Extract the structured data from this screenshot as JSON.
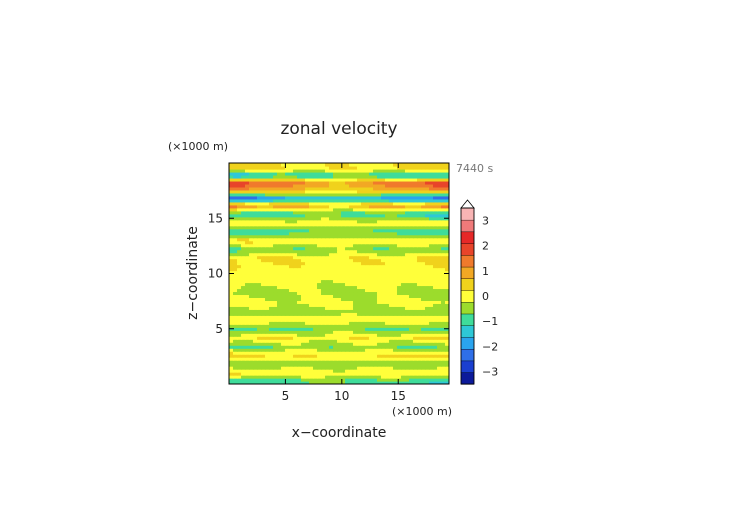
{
  "chart_data": {
    "type": "heatmap",
    "title": "zonal velocity",
    "time_label": "7440 s",
    "xlabel": "x−coordinate",
    "ylabel": "z−coordinate",
    "x_unit_label": "(×1000 m)",
    "y_unit_label": "(×1000 m)",
    "xlim": [
      0,
      19.5
    ],
    "ylim": [
      0,
      20
    ],
    "x_ticks": [
      5,
      10,
      15
    ],
    "y_ticks": [
      5,
      10,
      15
    ],
    "x_tick_labels": [
      "5",
      "10",
      "15"
    ],
    "y_tick_labels": [
      "5",
      "10",
      "15"
    ],
    "colorbar": {
      "min": -3.5,
      "max": 3.5,
      "step": 0.5,
      "extend_max": true,
      "tick_values": [
        -3,
        -2,
        -1,
        0,
        1,
        2,
        3
      ],
      "tick_labels": [
        "−3",
        "−2",
        "−1",
        "0",
        "1",
        "2",
        "3"
      ],
      "colors": [
        "#0c1a9a",
        "#1a3fd0",
        "#2f6fe8",
        "#2aa4ee",
        "#2ec8d6",
        "#3fdc9a",
        "#9cdc2c",
        "#ffff3a",
        "#f0d21c",
        "#f2a824",
        "#f07a2c",
        "#e8442a",
        "#e62828",
        "#f07a7a",
        "#f8b4b4"
      ]
    },
    "bands": [
      {
        "z": 0.3,
        "v": -0.8
      },
      {
        "z": 1.0,
        "v": 0.4
      },
      {
        "z": 1.8,
        "v": -0.3
      },
      {
        "z": 2.6,
        "v": 0.6
      },
      {
        "z": 3.4,
        "v": -0.5
      },
      {
        "z": 4.2,
        "v": 0.5
      },
      {
        "z": 5.0,
        "v": -0.6
      },
      {
        "z": 5.8,
        "v": 0.3
      },
      {
        "z": 6.6,
        "v": -0.3
      },
      {
        "z": 7.4,
        "v": 0.2
      },
      {
        "z": 8.2,
        "v": -0.2
      },
      {
        "z": 9.0,
        "v": 0.1
      },
      {
        "z": 9.8,
        "v": 0.2
      },
      {
        "z": 10.6,
        "v": 0.4
      },
      {
        "z": 11.4,
        "v": 0.6
      },
      {
        "z": 12.2,
        "v": -0.5
      },
      {
        "z": 13.0,
        "v": 0.5
      },
      {
        "z": 13.8,
        "v": -0.8
      },
      {
        "z": 14.6,
        "v": 0.4
      },
      {
        "z": 15.4,
        "v": -1.0
      },
      {
        "z": 16.2,
        "v": 1.5
      },
      {
        "z": 16.8,
        "v": -2.2
      },
      {
        "z": 17.5,
        "v": 1.0
      },
      {
        "z": 18.2,
        "v": 2.0
      },
      {
        "z": 18.9,
        "v": -1.2
      },
      {
        "z": 19.5,
        "v": 0.6
      }
    ]
  }
}
